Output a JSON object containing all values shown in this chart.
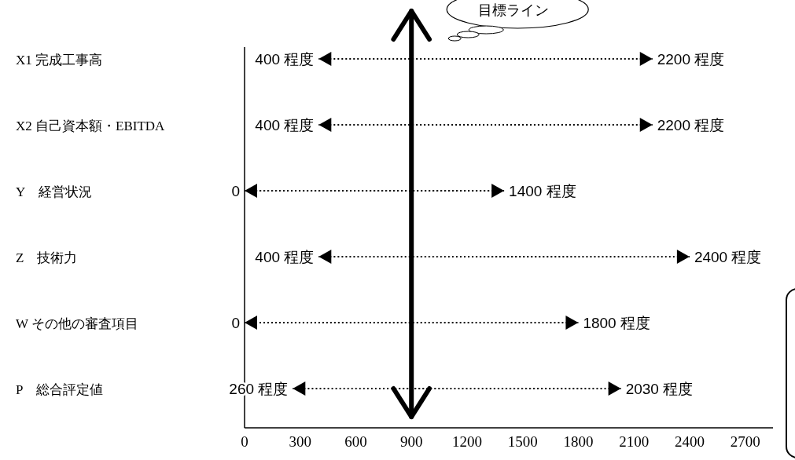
{
  "chart_data": {
    "type": "bar",
    "orientation": "horizontal",
    "line_style": "dotted",
    "categories": [
      "X1 完成工事高",
      "X2 自己資本額・EBITDA",
      "Y　経営状況",
      "Z　技術力",
      "W その他の審査項目",
      "P　総合評定値"
    ],
    "base": [
      400,
      400,
      0,
      400,
      0,
      260
    ],
    "values": [
      1800,
      1800,
      1400,
      2000,
      1800,
      1770
    ],
    "color": "#000000",
    "xlim": [
      0,
      2850
    ],
    "xticks": [
      0,
      300,
      600,
      900,
      1200,
      1500,
      1800,
      2100,
      2400,
      2700
    ],
    "ref_lines": [
      {
        "axis": "x",
        "value": 900,
        "label": "目標ライン",
        "color": "#000000"
      }
    ],
    "annotations": [
      {
        "text": "400 程度",
        "x": 400,
        "y": "X1 完成工事高"
      },
      {
        "text": "2200 程度",
        "x": 2200,
        "y": "X1 完成工事高"
      },
      {
        "text": "400 程度",
        "x": 400,
        "y": "X2 自己資本額・EBITDA"
      },
      {
        "text": "2200 程度",
        "x": 2200,
        "y": "X2 自己資本額・EBITDA"
      },
      {
        "text": "0",
        "x": 0,
        "y": "Y　経営状況"
      },
      {
        "text": "1400 程度",
        "x": 1400,
        "y": "Y　経営状況"
      },
      {
        "text": "400 程度",
        "x": 400,
        "y": "Z　技術力"
      },
      {
        "text": "2400 程度",
        "x": 2400,
        "y": "Z　技術力"
      },
      {
        "text": "0",
        "x": 0,
        "y": "W その他の審査項目"
      },
      {
        "text": "1800 程度",
        "x": 1800,
        "y": "W その他の審査項目"
      },
      {
        "text": "260 程度",
        "x": 260,
        "y": "P　総合評定値"
      },
      {
        "text": "2030 程度",
        "x": 2030,
        "y": "P　総合評定値"
      }
    ]
  }
}
